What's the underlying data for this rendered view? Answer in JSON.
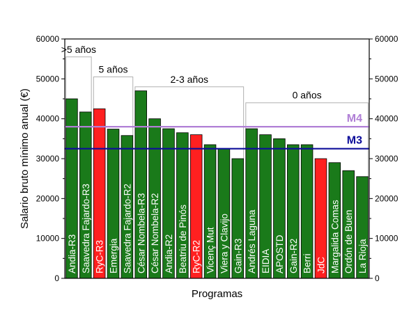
{
  "chart_data": {
    "type": "bar",
    "xlabel": "Programas",
    "ylabel": "Salario bruto mínimo anual (€)",
    "ylim": [
      0,
      60000
    ],
    "yticks": [
      0,
      10000,
      20000,
      30000,
      40000,
      50000,
      60000
    ],
    "categories": [
      "Andia-R3",
      "Saavedra Fajardo-R3",
      "RyC-R3",
      "Emergia",
      "Saavedra Fajardo-R2",
      "César Nombela-R3",
      "César Nombela-R2",
      "Andia-R2",
      "Beatriu de Pinós",
      "RyC-R2",
      "Vicenç Mut",
      "Viera y Clavijo",
      "Gain-R3",
      "Andrés Laguna",
      "EIDIA",
      "APOSTD",
      "Gain-R2",
      "Berri",
      "JdC",
      "Margalida Comas",
      "Ordón de Buen",
      "La Rioja"
    ],
    "values": [
      45000,
      41700,
      42500,
      37400,
      35800,
      47000,
      40000,
      37500,
      36500,
      36000,
      33500,
      32500,
      30000,
      37500,
      36000,
      35000,
      33500,
      33500,
      30000,
      29000,
      27000,
      25500
    ],
    "colors": [
      "#1a7a1a",
      "#1a7a1a",
      "#ff2020",
      "#1a7a1a",
      "#1a7a1a",
      "#1a7a1a",
      "#1a7a1a",
      "#1a7a1a",
      "#1a7a1a",
      "#ff2020",
      "#1a7a1a",
      "#1a7a1a",
      "#1a7a1a",
      "#1a7a1a",
      "#1a7a1a",
      "#1a7a1a",
      "#1a7a1a",
      "#1a7a1a",
      "#ff2020",
      "#1a7a1a",
      "#1a7a1a",
      "#1a7a1a"
    ],
    "groups": [
      {
        "label": ">5 años",
        "start": 0,
        "end": 1,
        "level": 55500
      },
      {
        "label": "5 años",
        "start": 2,
        "end": 4,
        "level": 50500
      },
      {
        "label": "2-3 años",
        "start": 5,
        "end": 12,
        "level": 48000
      },
      {
        "label": "0 años",
        "start": 13,
        "end": 21,
        "level": 44000
      }
    ],
    "reference_lines": [
      {
        "label": "M4",
        "value": 38000,
        "color": "#b07fd6"
      },
      {
        "label": "M3",
        "value": 32500,
        "color": "#0d0d9a"
      }
    ],
    "right_axis": true,
    "grid": false
  }
}
